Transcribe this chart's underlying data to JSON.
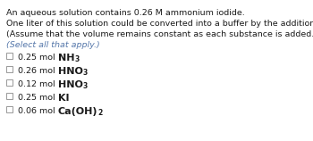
{
  "bg_color": "#ffffff",
  "text_color": "#1a1a1a",
  "italic_color": "#5577aa",
  "line1": "An aqueous solution contains 0.26 M ammonium iodide.",
  "line2": "One liter of this solution could be converted into a buffer by the addition of:",
  "line3": "(Assume that the volume remains constant as each substance is added.)",
  "line4_italic": "(Select all that apply.)",
  "options": [
    {
      "prefix": "0.25 mol ",
      "chemical": "NH",
      "sub": "3"
    },
    {
      "prefix": "0.26 mol ",
      "chemical": "HNO",
      "sub": "3"
    },
    {
      "prefix": "0.12 mol ",
      "chemical": "HNO",
      "sub": "3"
    },
    {
      "prefix": "0.25 mol ",
      "chemical": "KI",
      "sub": ""
    },
    {
      "prefix": "0.06 mol ",
      "chemical": "Ca(OH)",
      "sub": "2"
    }
  ],
  "figsize": [
    3.5,
    1.58
  ],
  "dpi": 100
}
